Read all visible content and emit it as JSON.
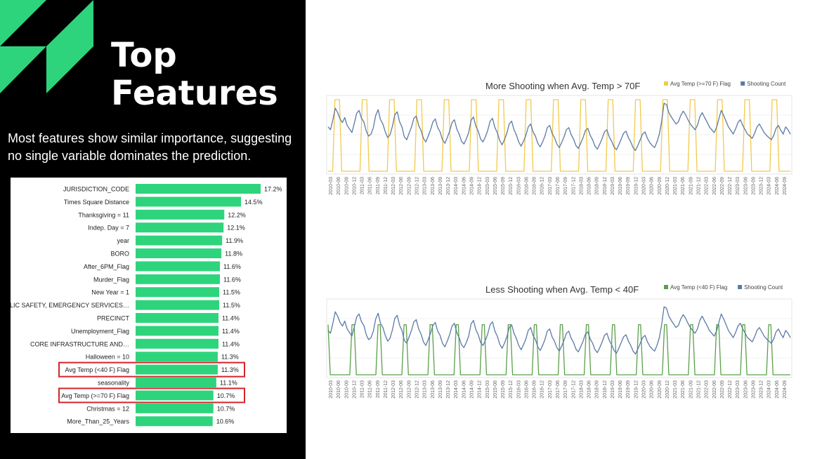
{
  "slide": {
    "title": "Top\nFeatures",
    "subtitle": "Most features show similar importance, suggesting no single variable dominates the prediction.",
    "colors": {
      "background": "#000000",
      "accent": "#2ed47c",
      "highlight_box": "#d0262b",
      "text": "#ffffff"
    }
  },
  "chart_data": [
    {
      "type": "bar",
      "orientation": "horizontal",
      "title": "",
      "categories": [
        "JURISDICTION_CODE",
        "Times Square Distance",
        "Thanksgiving = 11",
        "Indep. Day = 7",
        "year",
        "BORO",
        "After_6PM_Flag",
        "Murder_Flag",
        "New Year = 1",
        "PUBLIC SAFETY, EMERGENCY SERVICES…",
        "PRECINCT",
        "Unemployment_Flag",
        "CORE INFRASTRUCTURE AND…",
        "Halloween = 10",
        "Avg Temp (<40 F) Flag",
        "seasonality",
        "Avg Temp (>=70 F) Flag",
        "Christmas = 12",
        "More_Than_25_Years"
      ],
      "values": [
        17.2,
        14.5,
        12.2,
        12.1,
        11.9,
        11.8,
        11.6,
        11.6,
        11.5,
        11.5,
        11.4,
        11.4,
        11.4,
        11.3,
        11.3,
        11.1,
        10.7,
        10.7,
        10.6
      ],
      "value_labels": [
        "17.2%",
        "14.5%",
        "12.2%",
        "12.1%",
        "11.9%",
        "11.8%",
        "11.6%",
        "11.6%",
        "11.5%",
        "11.5%",
        "11.4%",
        "11.4%",
        "11.4%",
        "11.3%",
        "11.3%",
        "11.1%",
        "10.7%",
        "10.7%",
        "10.6%"
      ],
      "highlighted": [
        "Avg Temp (<40 F) Flag",
        "Avg Temp (>=70 F) Flag"
      ],
      "bar_color": "#2ed47c",
      "xlim": [
        0,
        17.2
      ]
    },
    {
      "type": "line",
      "title": "More Shooting when Avg. Temp > 70F",
      "legend": [
        {
          "name": "Avg Temp (>=70 F) Flag",
          "color": "#f2c94c"
        },
        {
          "name": "Shooting Count",
          "color": "#5b7aa6"
        }
      ],
      "x_tick_labels": [
        "2010-03",
        "2010-06",
        "2010-09",
        "2010-12",
        "2011-03",
        "2011-06",
        "2011-09",
        "2011-12",
        "2012-03",
        "2012-06",
        "2012-09",
        "2012-12",
        "2013-03",
        "2013-06",
        "2013-09",
        "2013-12",
        "2014-03",
        "2014-06",
        "2014-09",
        "2014-12",
        "2015-03",
        "2015-06",
        "2015-09",
        "2015-12",
        "2016-03",
        "2016-06",
        "2016-09",
        "2016-12",
        "2017-03",
        "2017-06",
        "2017-09",
        "2017-12",
        "2018-03",
        "2018-06",
        "2018-09",
        "2018-12",
        "2019-03",
        "2019-06",
        "2019-09",
        "2019-12",
        "2020-03",
        "2020-06",
        "2020-09",
        "2020-12",
        "2021-03",
        "2021-06",
        "2021-09",
        "2021-12",
        "2022-03",
        "2022-06",
        "2022-09",
        "2022-12",
        "2023-03",
        "2023-06",
        "2023-09",
        "2023-12",
        "2024-03",
        "2024-06",
        "2024-09"
      ],
      "series": [
        {
          "name": "Shooting Count",
          "values": [
            0.62,
            0.58,
            0.72,
            0.88,
            0.82,
            0.73,
            0.68,
            0.75,
            0.64,
            0.59,
            0.54,
            0.67,
            0.81,
            0.85,
            0.74,
            0.69,
            0.56,
            0.49,
            0.52,
            0.61,
            0.78,
            0.86,
            0.72,
            0.66,
            0.55,
            0.47,
            0.51,
            0.63,
            0.79,
            0.83,
            0.69,
            0.62,
            0.48,
            0.44,
            0.53,
            0.62,
            0.74,
            0.77,
            0.64,
            0.57,
            0.46,
            0.41,
            0.49,
            0.58,
            0.69,
            0.73,
            0.61,
            0.55,
            0.44,
            0.39,
            0.47,
            0.56,
            0.68,
            0.72,
            0.59,
            0.52,
            0.42,
            0.38,
            0.45,
            0.54,
            0.71,
            0.76,
            0.63,
            0.56,
            0.45,
            0.41,
            0.48,
            0.57,
            0.7,
            0.74,
            0.61,
            0.54,
            0.43,
            0.37,
            0.44,
            0.53,
            0.66,
            0.7,
            0.58,
            0.51,
            0.41,
            0.35,
            0.42,
            0.5,
            0.62,
            0.66,
            0.55,
            0.49,
            0.39,
            0.34,
            0.41,
            0.49,
            0.61,
            0.64,
            0.53,
            0.47,
            0.38,
            0.33,
            0.4,
            0.48,
            0.58,
            0.61,
            0.51,
            0.45,
            0.36,
            0.32,
            0.39,
            0.47,
            0.57,
            0.6,
            0.5,
            0.44,
            0.35,
            0.31,
            0.38,
            0.46,
            0.55,
            0.58,
            0.48,
            0.42,
            0.34,
            0.3,
            0.37,
            0.45,
            0.53,
            0.56,
            0.47,
            0.41,
            0.33,
            0.29,
            0.36,
            0.44,
            0.52,
            0.55,
            0.46,
            0.4,
            0.36,
            0.33,
            0.41,
            0.52,
            0.7,
            0.95,
            0.93,
            0.82,
            0.76,
            0.71,
            0.66,
            0.69,
            0.78,
            0.84,
            0.79,
            0.72,
            0.66,
            0.62,
            0.58,
            0.64,
            0.76,
            0.82,
            0.75,
            0.69,
            0.62,
            0.58,
            0.54,
            0.61,
            0.73,
            0.85,
            0.78,
            0.7,
            0.62,
            0.57,
            0.52,
            0.59,
            0.68,
            0.72,
            0.64,
            0.58,
            0.52,
            0.49,
            0.46,
            0.53,
            0.62,
            0.66,
            0.6,
            0.54,
            0.5,
            0.47,
            0.44,
            0.5,
            0.6,
            0.64,
            0.57,
            0.52,
            0.62,
            0.58,
            0.52
          ]
        },
        {
          "name": "Avg Temp (>=70 F) Flag",
          "values": [
            0,
            0,
            0,
            1,
            1,
            1,
            0,
            0,
            0,
            0,
            0,
            0,
            0,
            0,
            0,
            1,
            1,
            1,
            0,
            0,
            0,
            0,
            0,
            0,
            0,
            0,
            0,
            1,
            1,
            1,
            0,
            0,
            0,
            0,
            0,
            0,
            0,
            0,
            0,
            1,
            1,
            1,
            0,
            0,
            0,
            0,
            0,
            0,
            0,
            0,
            0,
            1,
            1,
            1,
            0,
            0,
            0,
            0,
            0,
            0,
            0,
            0,
            0,
            1,
            1,
            1,
            0,
            0,
            0,
            0,
            0,
            0,
            0,
            0,
            0,
            1,
            1,
            1,
            0,
            0,
            0,
            0,
            0,
            0,
            0,
            0,
            0,
            1,
            1,
            1,
            0,
            0,
            0,
            0,
            0,
            0,
            0,
            0,
            0,
            1,
            1,
            1,
            0,
            0,
            0,
            0,
            0,
            0,
            0,
            0,
            0,
            1,
            1,
            1,
            0,
            0,
            0,
            0,
            0,
            0,
            0,
            0,
            0,
            1,
            1,
            1,
            0,
            0,
            0,
            0,
            0,
            0,
            0,
            0,
            0,
            1,
            1,
            1,
            0,
            0,
            0,
            0,
            0,
            0,
            0,
            0,
            0,
            1,
            1,
            1,
            0,
            0,
            0,
            0,
            0,
            0,
            0,
            0,
            0,
            1,
            1,
            1,
            0,
            0,
            0,
            0,
            0,
            0,
            0,
            0,
            0,
            1,
            1,
            1,
            0,
            0,
            0,
            0,
            0,
            0,
            0,
            0,
            0,
            1,
            1,
            1,
            0,
            0,
            0,
            0,
            0,
            0,
            0,
            0,
            0,
            1,
            1,
            1,
            0,
            0,
            0,
            0,
            0,
            0
          ]
        }
      ],
      "ylim": [
        0,
        1
      ]
    },
    {
      "type": "line",
      "title": "Less Shooting when Avg. Temp < 40F",
      "legend": [
        {
          "name": "Avg Temp (<40 F) Flag",
          "color": "#5aa04a"
        },
        {
          "name": "Shooting Count",
          "color": "#5b7aa6"
        }
      ],
      "x_tick_labels": [
        "2010-03",
        "2010-06",
        "2010-09",
        "2010-12",
        "2011-03",
        "2011-06",
        "2011-09",
        "2011-12",
        "2012-03",
        "2012-06",
        "2012-09",
        "2012-12",
        "2013-03",
        "2013-06",
        "2013-09",
        "2013-12",
        "2014-03",
        "2014-06",
        "2014-09",
        "2014-12",
        "2015-03",
        "2015-06",
        "2015-09",
        "2015-12",
        "2016-03",
        "2016-06",
        "2016-09",
        "2016-12",
        "2017-03",
        "2017-06",
        "2017-09",
        "2017-12",
        "2018-03",
        "2018-06",
        "2018-09",
        "2018-12",
        "2019-03",
        "2019-06",
        "2019-09",
        "2019-12",
        "2020-03",
        "2020-06",
        "2020-09",
        "2020-12",
        "2021-03",
        "2021-06",
        "2021-09",
        "2021-12",
        "2022-03",
        "2022-06",
        "2022-09",
        "2022-12",
        "2023-03",
        "2023-06",
        "2023-09",
        "2023-12",
        "2024-03",
        "2024-06",
        "2024-09"
      ],
      "series": [
        {
          "name": "Shooting Count",
          "values": [
            0.62,
            0.58,
            0.72,
            0.88,
            0.82,
            0.73,
            0.68,
            0.75,
            0.64,
            0.59,
            0.54,
            0.67,
            0.81,
            0.85,
            0.74,
            0.69,
            0.56,
            0.49,
            0.52,
            0.61,
            0.78,
            0.86,
            0.72,
            0.66,
            0.55,
            0.47,
            0.51,
            0.63,
            0.79,
            0.83,
            0.69,
            0.62,
            0.48,
            0.44,
            0.53,
            0.62,
            0.74,
            0.77,
            0.64,
            0.57,
            0.46,
            0.41,
            0.49,
            0.58,
            0.69,
            0.73,
            0.61,
            0.55,
            0.44,
            0.39,
            0.47,
            0.56,
            0.68,
            0.72,
            0.59,
            0.52,
            0.42,
            0.38,
            0.45,
            0.54,
            0.71,
            0.76,
            0.63,
            0.56,
            0.45,
            0.41,
            0.48,
            0.57,
            0.7,
            0.74,
            0.61,
            0.54,
            0.43,
            0.37,
            0.44,
            0.53,
            0.66,
            0.7,
            0.58,
            0.51,
            0.41,
            0.35,
            0.42,
            0.5,
            0.62,
            0.66,
            0.55,
            0.49,
            0.39,
            0.34,
            0.41,
            0.49,
            0.61,
            0.64,
            0.53,
            0.47,
            0.38,
            0.33,
            0.4,
            0.48,
            0.58,
            0.61,
            0.51,
            0.45,
            0.36,
            0.32,
            0.39,
            0.47,
            0.57,
            0.6,
            0.5,
            0.44,
            0.35,
            0.31,
            0.38,
            0.46,
            0.55,
            0.58,
            0.48,
            0.42,
            0.34,
            0.3,
            0.37,
            0.45,
            0.53,
            0.56,
            0.47,
            0.41,
            0.33,
            0.29,
            0.36,
            0.44,
            0.52,
            0.55,
            0.46,
            0.4,
            0.36,
            0.33,
            0.41,
            0.52,
            0.7,
            0.95,
            0.93,
            0.82,
            0.76,
            0.71,
            0.66,
            0.69,
            0.78,
            0.84,
            0.79,
            0.72,
            0.66,
            0.62,
            0.58,
            0.64,
            0.76,
            0.82,
            0.75,
            0.69,
            0.62,
            0.58,
            0.54,
            0.61,
            0.73,
            0.85,
            0.78,
            0.7,
            0.62,
            0.57,
            0.52,
            0.59,
            0.68,
            0.72,
            0.64,
            0.58,
            0.52,
            0.49,
            0.46,
            0.53,
            0.62,
            0.66,
            0.6,
            0.54,
            0.5,
            0.47,
            0.44,
            0.5,
            0.6,
            0.64,
            0.57,
            0.52,
            0.62,
            0.58,
            0.52
          ]
        },
        {
          "name": "Avg Temp (<40 F) Flag",
          "values": [
            0.7,
            0,
            0,
            0,
            0,
            0,
            0,
            0,
            0,
            0,
            0,
            0.7,
            0.7,
            0,
            0,
            0,
            0,
            0,
            0,
            0,
            0,
            0,
            0,
            0.7,
            0.7,
            0,
            0,
            0,
            0,
            0,
            0,
            0,
            0,
            0,
            0,
            0.7,
            0.7,
            0,
            0,
            0,
            0,
            0,
            0,
            0,
            0,
            0,
            0,
            0.7,
            0.7,
            0,
            0,
            0,
            0,
            0,
            0,
            0,
            0,
            0,
            0,
            0.7,
            0.7,
            0,
            0,
            0,
            0,
            0,
            0,
            0,
            0,
            0,
            0,
            0.7,
            0.7,
            0,
            0,
            0,
            0,
            0,
            0,
            0,
            0,
            0,
            0,
            0.7,
            0.7,
            0,
            0,
            0,
            0,
            0,
            0,
            0,
            0,
            0,
            0,
            0.7,
            0.7,
            0,
            0,
            0,
            0,
            0,
            0,
            0,
            0,
            0,
            0,
            0.7,
            0.7,
            0,
            0,
            0,
            0,
            0,
            0,
            0,
            0,
            0,
            0,
            0.7,
            0.7,
            0,
            0,
            0,
            0,
            0,
            0,
            0,
            0,
            0,
            0,
            0.7,
            0.7,
            0,
            0,
            0,
            0,
            0,
            0,
            0,
            0,
            0,
            0,
            0.7,
            0.7,
            0,
            0,
            0,
            0,
            0,
            0,
            0,
            0,
            0,
            0,
            0.7,
            0.7,
            0,
            0,
            0,
            0,
            0,
            0,
            0,
            0,
            0,
            0,
            0.7,
            0.7,
            0,
            0,
            0,
            0,
            0,
            0,
            0,
            0,
            0,
            0,
            0.7,
            0.7,
            0,
            0,
            0,
            0,
            0,
            0,
            0,
            0,
            0,
            0,
            0.7,
            0.7,
            0,
            0,
            0,
            0,
            0,
            0,
            0,
            0,
            0,
            0,
            0.7,
            0.7,
            0,
            0,
            0,
            0,
            0,
            0,
            0,
            0,
            0
          ]
        }
      ],
      "ylim": [
        0,
        1
      ]
    }
  ]
}
